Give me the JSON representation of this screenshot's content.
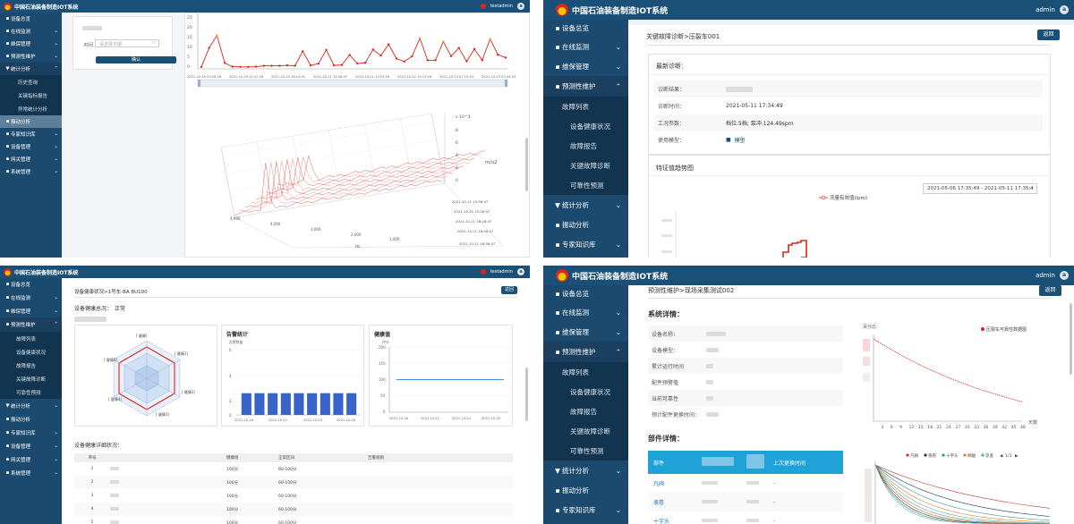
{
  "app": {
    "brand": "中国石油装备制造IOT系统",
    "user_test": "testadmin",
    "user_admin": "admin",
    "avatar_letter": "a",
    "brand_color": "#1a4f77",
    "accent_red": "#d9261c"
  },
  "nav": {
    "overview": "设备总览",
    "monitor": "在线监测",
    "maintain": "维保管理",
    "predict": "预测性维护",
    "stats": "统计分析",
    "vibration": "振动分析",
    "knowledge": "专家知识库",
    "devices": "设备管理",
    "gateway": "网关管理",
    "system": "系统管理",
    "stats_sub": [
      "历史查询",
      "关键指标报告",
      "异常统计分析"
    ],
    "predict_sub": [
      "故障列表",
      "设备健康状况",
      "故障报告",
      "关键故障诊断",
      "可靠性预测"
    ]
  },
  "p1": {
    "time_label": "时间",
    "date_placeholder": "请选择日期",
    "confirm": "确认",
    "y_ticks": [
      "25",
      "20",
      "15",
      "10",
      "5",
      "0"
    ],
    "x_ticks": [
      "2021-10-19 23:26:16",
      "2021-10-19 22:41:16",
      "2021-10-20 16:14:01",
      "2021-10-21 14:28:47",
      "2021-10-21 13:23:16",
      "2021-10-22 13:13:16",
      "2021-10-23 07:13:53",
      "2021-10-23 03:43:53"
    ],
    "z_label": "m/s2",
    "z_ticks": [
      "x 10^3",
      "8",
      "6",
      "4",
      "2",
      "0"
    ],
    "depth_labels": [
      "2021-10-21 15:56:47",
      "2021-10-21 15:28:47",
      "2021-10-21 16:28:47",
      "2021-10-21 16:56:47",
      "2021-10-21 16:56:47"
    ],
    "freq_ticks": [
      "4,990",
      "4,000",
      "3,000",
      "2,000",
      "1,000"
    ],
    "freq_unit": "Hz"
  },
  "p2": {
    "breadcrumb": "关键故障诊断>压裂车001",
    "back": "返回",
    "latest_title": "最新诊断：",
    "rows": [
      {
        "label": "诊断结果：",
        "value": ""
      },
      {
        "label": "诊断时间：",
        "value": "2021-05-11 17:34:49"
      },
      {
        "label": "工况参数：",
        "value": "档位:5档;  泵冲:124.49spm"
      },
      {
        "label": "使用模型：",
        "value": "模型"
      }
    ],
    "trend_title": "特征值趋势图",
    "legend": "流量有效值(lpm)",
    "date_range": "2021-05-06 17:35:49 - 2021-05-11 17:35:4"
  },
  "p3": {
    "breadcrumb": "设备健康状况>1号车-BA BU100",
    "back": "返回",
    "overview_label": "设备健康总况：",
    "overview_status": "正常",
    "radar_labels": [
      "[ 健康] ",
      "[ 健康1]",
      "[ 健康2]",
      "[ 健康3]",
      "[ 健康4]",
      "[ 健康5]"
    ],
    "alarm_title": "告警统计",
    "alarm_ylabel": "告警数量",
    "alarm_yticks": [
      "6",
      "4",
      "2",
      "0"
    ],
    "alarm_xticks": [
      "2021-10-18",
      "2021-10-22",
      "2021-10-24",
      "2021-10-26"
    ],
    "health_title": "健康值",
    "health_ylabel": "评分",
    "health_yticks": [
      "200",
      "150",
      "100",
      "50",
      "0"
    ],
    "health_xticks": [
      "2021-10-18",
      "2021-10-22",
      "2021-10-24",
      "2021-10-26"
    ],
    "detail_title": "设备健康详细状况：",
    "table_headers": [
      "序号",
      "",
      "健康值",
      "正常区间",
      "告警规则"
    ],
    "table_rows": [
      [
        "1",
        "",
        "100分",
        "60-100分",
        ""
      ],
      [
        "2",
        "",
        "100分",
        "60-100分",
        ""
      ],
      [
        "3",
        "",
        "100分",
        "60-100分",
        ""
      ],
      [
        "4",
        "",
        "100分",
        "60-100分",
        ""
      ],
      [
        "5",
        "",
        "100分",
        "60-100分",
        ""
      ]
    ]
  },
  "p4": {
    "breadcrumb": "预测性维护>现场采集测试002",
    "back": "返回",
    "system_title": "系统详情：",
    "fields": [
      "设备名称：",
      "设备模型：",
      "累计运行时间",
      "配件预警值",
      "当前可靠性",
      "预计配件更换时间："
    ],
    "chart_ylabel": "百分比",
    "chart_legend": "压裂车可靠性数据图",
    "chart_xlabel": "天数",
    "chart_xticks": [
      "3",
      "6",
      "9",
      "12",
      "15",
      "18",
      "21",
      "24",
      "27",
      "30",
      "33",
      "36",
      "39",
      "42",
      "45",
      "48"
    ],
    "parts_title": "部件详情：",
    "parts_headers": [
      "部件",
      "",
      "",
      "上次更换时间"
    ],
    "parts_rows": [
      "凡阀",
      "液卷",
      "十字头"
    ],
    "parts_dash": "-",
    "parts_legend": [
      "凡阀",
      "液卷",
      "十字头",
      "柄轴",
      "凉查"
    ],
    "parts_page": "1/3"
  },
  "chart_data": [
    {
      "type": "bar",
      "title": "告警统计",
      "ylabel": "告警数量",
      "categories": [
        "2021-10-18",
        "2021-10-19",
        "2021-10-20",
        "2021-10-21",
        "2021-10-22",
        "2021-10-23",
        "2021-10-24",
        "2021-10-25",
        "2021-10-26"
      ],
      "values": [
        2,
        2,
        2,
        2,
        2,
        2,
        2,
        2,
        2
      ],
      "ylim": [
        0,
        6
      ],
      "color": "#3a63c9"
    },
    {
      "type": "line",
      "title": "健康值",
      "ylabel": "评分",
      "x": [
        "2021-10-18",
        "2021-10-26"
      ],
      "values": [
        100,
        100
      ],
      "ylim": [
        0,
        200
      ],
      "color": "#4a8fd6"
    },
    {
      "type": "line",
      "title": "压裂车可靠性数据图",
      "xlabel": "天数",
      "ylabel": "百分比",
      "x": [
        0,
        3,
        6,
        9,
        12,
        15,
        18,
        21,
        24,
        27,
        30,
        33,
        36,
        39,
        42,
        45,
        48
      ],
      "values": [
        1.0,
        0.955,
        0.912,
        0.871,
        0.832,
        0.795,
        0.76,
        0.727,
        0.696,
        0.667,
        0.639,
        0.613,
        0.589,
        0.566,
        0.544,
        0.523,
        0.503
      ],
      "color": "#d9261c"
    },
    {
      "type": "line",
      "title": "",
      "values": [
        0.5,
        9.4,
        15.1,
        2.3,
        0.6,
        0.5,
        0.5,
        0.6,
        1.0,
        1.0,
        1.0,
        1.2,
        1.0,
        7.8,
        1.2,
        2.0,
        8.4,
        1.2,
        1.4,
        6.0,
        2.1,
        2.4,
        8.6,
        5.8,
        11.0,
        4.4,
        3.0,
        5.4,
        13.8,
        3.6,
        3.6,
        12.3,
        5.5,
        9.3,
        3.1,
        8.8,
        3.6,
        13.5,
        6.2,
        4.8
      ],
      "ylim": [
        0,
        25
      ],
      "color": "#d9261c"
    }
  ]
}
